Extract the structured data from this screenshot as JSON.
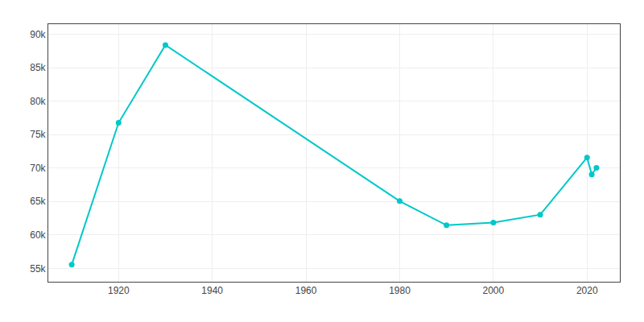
{
  "chart_data": {
    "type": "line",
    "x": [
      1910,
      1920,
      1930,
      1980,
      1990,
      2000,
      2010,
      2020,
      2021,
      2022
    ],
    "values": [
      55545,
      76754,
      88378,
      65047,
      61444,
      61842,
      63024,
      71564,
      69036,
      70010
    ],
    "color": "#00C8C8",
    "marker": "circle",
    "xlim": [
      1905,
      2027
    ],
    "xticks": [
      1920,
      1940,
      1960,
      1980,
      2000,
      2020
    ],
    "ylim": [
      53000,
      91500
    ],
    "yticks": [
      {
        "value": 55000,
        "label": "55k"
      },
      {
        "value": 60000,
        "label": "60k"
      },
      {
        "value": 65000,
        "label": "65k"
      },
      {
        "value": 70000,
        "label": "70k"
      },
      {
        "value": 75000,
        "label": "75k"
      },
      {
        "value": 80000,
        "label": "80k"
      },
      {
        "value": 85000,
        "label": "85k"
      },
      {
        "value": 90000,
        "label": "90k"
      }
    ],
    "grid": true
  }
}
